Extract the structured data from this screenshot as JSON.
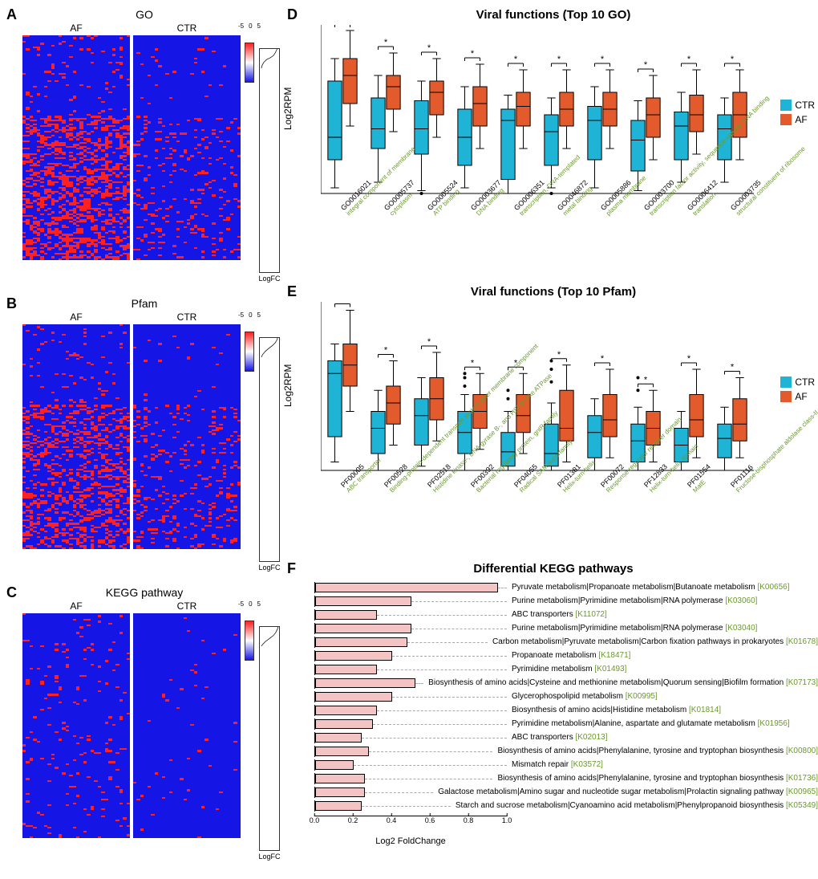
{
  "colors": {
    "ctr": "#1fb4d6",
    "af": "#e35b2c",
    "heatmap_low": "#1515e5",
    "heatmap_high": "#ff2020",
    "heatmap_mid": "#ffffff",
    "bar_fill": "#f4c4c4",
    "label_green": "#6a9a2a",
    "background": "#ffffff"
  },
  "heatmaps": {
    "A": {
      "label": "A",
      "title": "GO",
      "groups": [
        "AF",
        "CTR"
      ],
      "colorbar": {
        "min": -5,
        "mid": 0,
        "max": 5
      },
      "logfc_label": "LogFC",
      "speck_density_af": 0.22,
      "speck_density_ctr": 0.06,
      "logfc_curve": [
        [
          0.9,
          0
        ],
        [
          0.85,
          0.1
        ],
        [
          0.8,
          0.2
        ],
        [
          0.7,
          0.35
        ],
        [
          0.55,
          0.45
        ],
        [
          0.35,
          0.55
        ],
        [
          0.2,
          0.7
        ],
        [
          0.12,
          0.85
        ],
        [
          0.08,
          1
        ]
      ]
    },
    "B": {
      "label": "B",
      "title": "Pfam",
      "groups": [
        "AF",
        "CTR"
      ],
      "colorbar": {
        "min": -5,
        "mid": 0,
        "max": 5
      },
      "logfc_label": "LogFC",
      "speck_density_af": 0.18,
      "speck_density_ctr": 0.07,
      "logfc_curve": [
        [
          0.92,
          0
        ],
        [
          0.88,
          0.12
        ],
        [
          0.8,
          0.25
        ],
        [
          0.65,
          0.4
        ],
        [
          0.45,
          0.55
        ],
        [
          0.28,
          0.7
        ],
        [
          0.15,
          0.85
        ],
        [
          0.08,
          1
        ]
      ]
    },
    "C": {
      "label": "C",
      "title": "KEGG pathway",
      "groups": [
        "AF",
        "CTR"
      ],
      "colorbar": {
        "min": -5,
        "mid": 0,
        "max": 5
      },
      "logfc_label": "LogFC",
      "speck_density_af": 0.05,
      "speck_density_ctr": 0.015,
      "logfc_curve": [
        [
          0.95,
          0
        ],
        [
          0.9,
          0.15
        ],
        [
          0.82,
          0.3
        ],
        [
          0.7,
          0.45
        ],
        [
          0.5,
          0.6
        ],
        [
          0.3,
          0.75
        ],
        [
          0.15,
          0.9
        ],
        [
          0.08,
          1
        ]
      ]
    }
  },
  "boxplots": {
    "D": {
      "label": "D",
      "title": "Viral functions (Top 10 GO)",
      "ylabel": "Log2RPM",
      "ylim": [
        0,
        3
      ],
      "ytick_step": 1,
      "legend": [
        {
          "name": "CTR",
          "color": "#1fb4d6"
        },
        {
          "name": "AF",
          "color": "#e35b2c"
        }
      ],
      "sig_mark": "*",
      "categories": [
        {
          "id": "GO0016021",
          "desc": "integral component of membrane",
          "ctr": {
            "q1": 0.6,
            "med": 1.0,
            "q3": 2.0,
            "lo": 0.1,
            "hi": 2.4
          },
          "af": {
            "q1": 1.6,
            "med": 2.1,
            "q3": 2.4,
            "lo": 1.2,
            "hi": 2.9
          }
        },
        {
          "id": "GO0005737",
          "desc": "cytoplasm",
          "ctr": {
            "q1": 0.8,
            "med": 1.15,
            "q3": 1.7,
            "lo": 0.2,
            "hi": 2.1
          },
          "af": {
            "q1": 1.5,
            "med": 1.9,
            "q3": 2.1,
            "lo": 1.1,
            "hi": 2.5
          }
        },
        {
          "id": "GO0005524",
          "desc": "ATP binding",
          "ctr": {
            "q1": 0.7,
            "med": 1.15,
            "q3": 1.65,
            "lo": 0.05,
            "hi": 2.0,
            "out": [
              0.0
            ]
          },
          "af": {
            "q1": 1.4,
            "med": 1.8,
            "q3": 2.0,
            "lo": 1.0,
            "hi": 2.4
          }
        },
        {
          "id": "GO0003677",
          "desc": "DNA binding",
          "ctr": {
            "q1": 0.5,
            "med": 1.0,
            "q3": 1.5,
            "lo": 0.1,
            "hi": 1.9
          },
          "af": {
            "q1": 1.2,
            "med": 1.6,
            "q3": 1.9,
            "lo": 0.8,
            "hi": 2.3
          }
        },
        {
          "id": "GO0006351",
          "desc": "transcription, DNA-templated",
          "ctr": {
            "q1": 0.25,
            "med": 1.3,
            "q3": 1.5,
            "lo": 0.0,
            "hi": 1.75
          },
          "af": {
            "q1": 1.2,
            "med": 1.55,
            "q3": 1.8,
            "lo": 0.8,
            "hi": 2.2
          }
        },
        {
          "id": "GO0046872",
          "desc": "metal binding",
          "ctr": {
            "q1": 0.5,
            "med": 1.1,
            "q3": 1.4,
            "lo": 0.1,
            "hi": 1.7,
            "out": [
              0.0
            ]
          },
          "af": {
            "q1": 1.2,
            "med": 1.5,
            "q3": 1.8,
            "lo": 0.8,
            "hi": 2.2
          }
        },
        {
          "id": "GO0005886",
          "desc": "plasma membrane",
          "ctr": {
            "q1": 0.6,
            "med": 1.3,
            "q3": 1.55,
            "lo": 0.1,
            "hi": 1.9
          },
          "af": {
            "q1": 1.2,
            "med": 1.5,
            "q3": 1.8,
            "lo": 0.8,
            "hi": 2.2
          }
        },
        {
          "id": "GO0003700",
          "desc": "transcription factor activity, sequence-specific DNA binding",
          "ctr": {
            "q1": 0.4,
            "med": 0.95,
            "q3": 1.3,
            "lo": 0.05,
            "hi": 1.65
          },
          "af": {
            "q1": 1.0,
            "med": 1.4,
            "q3": 1.7,
            "lo": 0.6,
            "hi": 2.1
          }
        },
        {
          "id": "GO0006412",
          "desc": "translation",
          "ctr": {
            "q1": 0.6,
            "med": 1.2,
            "q3": 1.45,
            "lo": 0.2,
            "hi": 1.8
          },
          "af": {
            "q1": 1.1,
            "med": 1.4,
            "q3": 1.75,
            "lo": 0.7,
            "hi": 2.2
          }
        },
        {
          "id": "GO0003735",
          "desc": "structural constituent of ribosome",
          "ctr": {
            "q1": 0.6,
            "med": 1.15,
            "q3": 1.4,
            "lo": 0.2,
            "hi": 1.7
          },
          "af": {
            "q1": 1.0,
            "med": 1.4,
            "q3": 1.8,
            "lo": 0.6,
            "hi": 2.2
          }
        }
      ]
    },
    "E": {
      "label": "E",
      "title": "Viral functions (Top 10 Pfam)",
      "ylabel": "Log2RPM",
      "ylim": [
        0,
        2
      ],
      "ytick_step": 0.5,
      "legend": [
        {
          "name": "CTR",
          "color": "#1fb4d6"
        },
        {
          "name": "AF",
          "color": "#e35b2c"
        }
      ],
      "sig_mark": "*",
      "categories": [
        {
          "id": "PF00005",
          "desc": "ABC transporter",
          "ctr": {
            "q1": 0.4,
            "med": 1.15,
            "q3": 1.3,
            "lo": 0.1,
            "hi": 1.5
          },
          "af": {
            "q1": 1.0,
            "med": 1.25,
            "q3": 1.5,
            "lo": 0.7,
            "hi": 1.9
          }
        },
        {
          "id": "PF00528",
          "desc": "Binding-protein-dependent transport system inner membrane component",
          "ctr": {
            "q1": 0.2,
            "med": 0.5,
            "q3": 0.7,
            "lo": 0.0,
            "hi": 0.95
          },
          "af": {
            "q1": 0.55,
            "med": 0.8,
            "q3": 1.0,
            "lo": 0.3,
            "hi": 1.3
          }
        },
        {
          "id": "PF02518",
          "desc": "Histidine kinase-, DNA gyrase B-, and HSP90-like ATPase",
          "ctr": {
            "q1": 0.3,
            "med": 0.65,
            "q3": 0.85,
            "lo": 0.05,
            "hi": 1.1
          },
          "af": {
            "q1": 0.6,
            "med": 0.85,
            "q3": 1.1,
            "lo": 0.35,
            "hi": 1.4
          }
        },
        {
          "id": "PF00392",
          "desc": "Bacterial regulatory protein, gntR family",
          "ctr": {
            "q1": 0.2,
            "med": 0.45,
            "q3": 0.7,
            "lo": 0.0,
            "hi": 0.9,
            "out": [
              1.0,
              1.1,
              1.15
            ]
          },
          "af": {
            "q1": 0.5,
            "med": 0.7,
            "q3": 0.9,
            "lo": 0.25,
            "hi": 1.15
          }
        },
        {
          "id": "PF04055",
          "desc": "Radical SAM superfamily",
          "ctr": {
            "q1": 0.05,
            "med": 0.22,
            "q3": 0.45,
            "lo": 0.0,
            "hi": 0.7,
            "out": [
              0.85,
              0.95
            ]
          },
          "af": {
            "q1": 0.45,
            "med": 0.65,
            "q3": 0.9,
            "lo": 0.2,
            "hi": 1.15
          }
        },
        {
          "id": "PF01381",
          "desc": "Helix-turn-helix",
          "ctr": {
            "q1": 0.05,
            "med": 0.2,
            "q3": 0.55,
            "lo": 0.0,
            "hi": 0.8,
            "out": [
              1.05,
              1.2,
              1.3
            ]
          },
          "af": {
            "q1": 0.35,
            "med": 0.5,
            "q3": 0.95,
            "lo": 0.1,
            "hi": 1.25
          }
        },
        {
          "id": "PF00072",
          "desc": "Response regulator receiver domain",
          "ctr": {
            "q1": 0.15,
            "med": 0.45,
            "q3": 0.65,
            "lo": 0.0,
            "hi": 0.85
          },
          "af": {
            "q1": 0.4,
            "med": 0.6,
            "q3": 0.9,
            "lo": 0.15,
            "hi": 1.2
          }
        },
        {
          "id": "PF12833",
          "desc": "Helix-turn-helix domain",
          "ctr": {
            "q1": 0.1,
            "med": 0.35,
            "q3": 0.55,
            "lo": 0.0,
            "hi": 0.75,
            "out": [
              0.95,
              1.1
            ]
          },
          "af": {
            "q1": 0.3,
            "med": 0.5,
            "q3": 0.7,
            "lo": 0.1,
            "hi": 0.95
          }
        },
        {
          "id": "PF01554",
          "desc": "MatE",
          "ctr": {
            "q1": 0.1,
            "med": 0.3,
            "q3": 0.5,
            "lo": 0.0,
            "hi": 0.7
          },
          "af": {
            "q1": 0.4,
            "med": 0.6,
            "q3": 0.9,
            "lo": 0.15,
            "hi": 1.2
          }
        },
        {
          "id": "PF01116",
          "desc": "Fructose-bisphosphate aldolase class-II",
          "ctr": {
            "q1": 0.15,
            "med": 0.38,
            "q3": 0.55,
            "lo": 0.0,
            "hi": 0.75
          },
          "af": {
            "q1": 0.35,
            "med": 0.55,
            "q3": 0.85,
            "lo": 0.15,
            "hi": 1.1
          }
        }
      ]
    }
  },
  "barchart_F": {
    "label": "F",
    "title": "Differential KEGG pathways",
    "xlabel": "Log2 FoldChange",
    "xlim": [
      0,
      1.0
    ],
    "xtick_step": 0.2,
    "bar_fill": "#f4c4c4",
    "rows": [
      {
        "name": "Pyruvate metabolism|Propanoate metabolism|Butanoate metabolism",
        "kid": "[K00656]",
        "val": 0.95
      },
      {
        "name": "Purine metabolism|Pyrimidine metabolism|RNA polymerase",
        "kid": "[K03060]",
        "val": 0.5
      },
      {
        "name": "ABC transporters",
        "kid": "[K11072]",
        "val": 0.32
      },
      {
        "name": "Purine metabolism|Pyrimidine metabolism|RNA polymerase",
        "kid": "[K03040]",
        "val": 0.5
      },
      {
        "name": "Carbon metabolism|Pyruvate metabolism|Carbon fixation pathways in prokaryotes",
        "kid": "[K01678]",
        "val": 0.48
      },
      {
        "name": "Propanoate metabolism",
        "kid": "[K18471]",
        "val": 0.4
      },
      {
        "name": "Pyrimidine metabolism",
        "kid": "[K01493]",
        "val": 0.32
      },
      {
        "name": "Biosynthesis of amino acids|Cysteine and methionine metabolism|Quorum sensing|Biofilm formation",
        "kid": "[K07173]",
        "val": 0.52
      },
      {
        "name": "Glycerophospolipid metabolism",
        "kid": "[K00995]",
        "val": 0.4
      },
      {
        "name": "Biosynthesis of amino acids|Histidine metabolism",
        "kid": "[K01814]",
        "val": 0.32
      },
      {
        "name": "Pyrimidine metabolism|Alanine, aspartate and glutamate metabolism",
        "kid": "[K01956]",
        "val": 0.3
      },
      {
        "name": "ABC transporters",
        "kid": "[K02013]",
        "val": 0.24
      },
      {
        "name": "Biosynthesis of amino acids|Phenylalanine, tyrosine and tryptophan biosynthesis",
        "kid": "[K00800]",
        "val": 0.28
      },
      {
        "name": "Mismatch repair",
        "kid": "[K03572]",
        "val": 0.2
      },
      {
        "name": "Biosynthesis of amino acids|Phenylalanine, tyrosine and tryptophan biosynthesis",
        "kid": "[K01736]",
        "val": 0.26
      },
      {
        "name": "Galactose metabolism|Amino sugar and nucleotide sugar metabolism|Prolactin signaling pathway",
        "kid": "[K00965]",
        "val": 0.26
      },
      {
        "name": "Starch and sucrose metabolism|Cyanoamino acid metabolism|Phenylpropanoid biosynthesis",
        "kid": "[K05349]",
        "val": 0.24
      }
    ]
  }
}
